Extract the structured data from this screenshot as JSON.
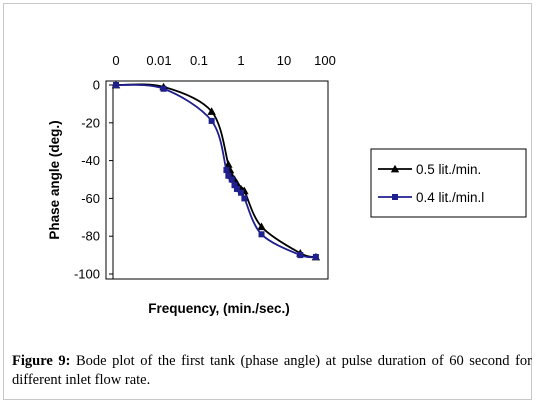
{
  "chart_data": {
    "type": "line",
    "xlabel": "Frequency, (min./sec.)",
    "ylabel": "Phase angle (deg.)",
    "x_ticks": [
      "0",
      "0.01",
      "0.1",
      "1",
      "10",
      "100"
    ],
    "y_ticks": [
      "0",
      "-20",
      "-40",
      "-60",
      "-80",
      "-100"
    ],
    "ylim": [
      -100,
      0
    ],
    "x_axis_position": "top",
    "grid": false,
    "legend_position": "right",
    "series": [
      {
        "name": "0.5 lit./min.",
        "color": "#000000",
        "marker": "triangle",
        "x": [
          0.001,
          0.013,
          0.2,
          0.5,
          0.55,
          0.6,
          0.7,
          0.8,
          1.0,
          1.2,
          3.0,
          25,
          60
        ],
        "y": [
          0,
          -1,
          -14,
          -42,
          -45,
          -48,
          -50,
          -52,
          -55,
          -56,
          -75,
          -89,
          -91
        ]
      },
      {
        "name": "0.4 lit./min.l",
        "color": "#1f1f8f",
        "marker": "square",
        "x": [
          0.001,
          0.013,
          0.2,
          0.45,
          0.5,
          0.6,
          0.7,
          0.8,
          1.0,
          1.2,
          3.0,
          25,
          60
        ],
        "y": [
          0,
          -2,
          -19,
          -45,
          -48,
          -50,
          -53,
          -55,
          -57,
          -60,
          -79,
          -90,
          -91
        ]
      }
    ]
  },
  "caption": {
    "label": "Figure 9:",
    "text": " Bode plot of the first tank (phase angle) at pulse duration of 60 second for different inlet flow rate."
  }
}
